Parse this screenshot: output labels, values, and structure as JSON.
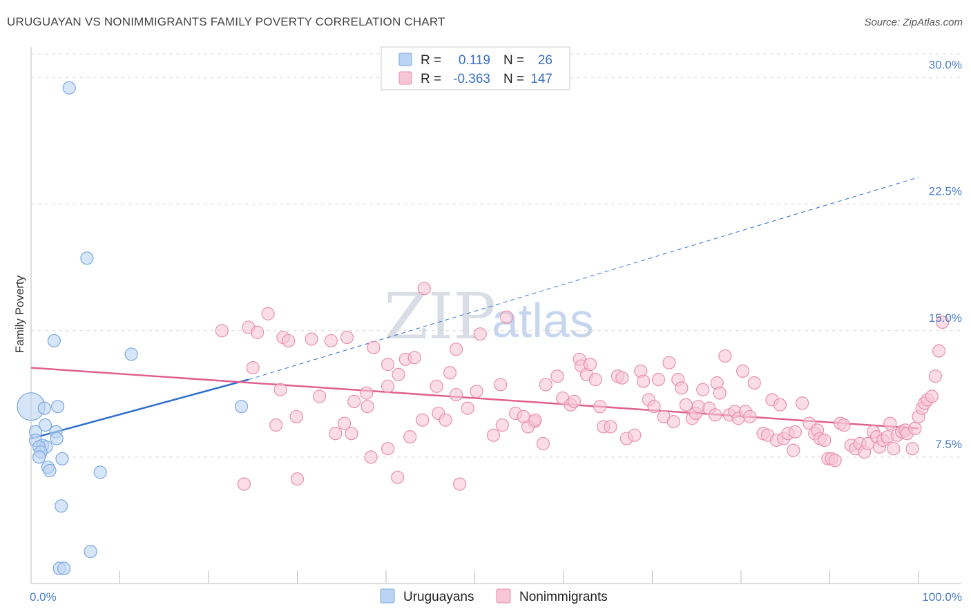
{
  "title": "URUGUAYAN VS NONIMMIGRANTS FAMILY POVERTY CORRELATION CHART",
  "source": "Source: ZipAtlas.com",
  "watermark": {
    "zip": "ZIP",
    "atlas": "atlas"
  },
  "colors": {
    "blue": "#7aa7e0",
    "blue_fill": "#bcd4f3",
    "blue_line": "#2f6fd0",
    "pink": "#e98fae",
    "pink_fill": "#f7c6d6",
    "pink_line": "#e0608f",
    "grid": "#d8d8d8",
    "tick_label": "#4a7cc4"
  },
  "stats_legend": {
    "rows": [
      {
        "r_label": "R =",
        "r_value": "0.119",
        "n_label": "N =",
        "n_value": "26",
        "series": "uruguayans"
      },
      {
        "r_label": "R =",
        "r_value": "-0.363",
        "n_label": "N =",
        "n_value": "147",
        "series": "nonimmigrants"
      }
    ]
  },
  "bottom_legend": [
    "Uruguayans",
    "Nonimmigrants"
  ],
  "chart_data": {
    "type": "scatter",
    "title": "URUGUAYAN VS NONIMMIGRANTS FAMILY POVERTY CORRELATION CHART",
    "xlabel": "",
    "ylabel": "Family Poverty",
    "xlim": [
      0,
      100
    ],
    "ylim": [
      0,
      31.5
    ],
    "x_tick_labels": [
      "0.0%",
      "100.0%"
    ],
    "y_ticks": [
      7.5,
      15.0,
      22.5,
      30.0
    ],
    "y_tick_labels": [
      "7.5%",
      "15.0%",
      "22.5%",
      "30.0%"
    ],
    "grid": "horizontal dashed",
    "legend": "top-center",
    "series": [
      {
        "name": "Uruguayans",
        "points": [
          [
            0.0,
            10.5
          ],
          [
            1.5,
            10.4
          ],
          [
            3.0,
            10.5
          ],
          [
            1.6,
            9.4
          ],
          [
            0.5,
            9.0
          ],
          [
            0.5,
            8.5
          ],
          [
            2.8,
            9.0
          ],
          [
            2.9,
            8.6
          ],
          [
            1.3,
            8.2
          ],
          [
            1.7,
            8.1
          ],
          [
            0.9,
            8.1
          ],
          [
            1.1,
            7.8
          ],
          [
            3.5,
            7.4
          ],
          [
            0.9,
            7.5
          ],
          [
            1.9,
            6.9
          ],
          [
            2.1,
            6.7
          ],
          [
            7.8,
            6.6
          ],
          [
            2.6,
            14.4
          ],
          [
            11.3,
            13.6
          ],
          [
            6.3,
            19.3
          ],
          [
            4.3,
            29.4
          ],
          [
            3.4,
            4.6
          ],
          [
            6.7,
            1.9
          ],
          [
            3.2,
            0.9
          ],
          [
            3.7,
            0.9
          ],
          [
            23.7,
            10.5
          ]
        ],
        "trend": {
          "x": [
            0,
            24.5
          ],
          "y": [
            8.6,
            12.1
          ],
          "extended_to": [
            100,
            24.1
          ]
        }
      },
      {
        "name": "Nonimmigrants",
        "points": [
          [
            21.5,
            15.0
          ],
          [
            24.5,
            15.2
          ],
          [
            25.5,
            14.9
          ],
          [
            26.7,
            16.0
          ],
          [
            28.4,
            14.6
          ],
          [
            29.0,
            14.4
          ],
          [
            31.6,
            14.5
          ],
          [
            33.8,
            14.4
          ],
          [
            35.6,
            14.6
          ],
          [
            36.4,
            10.8
          ],
          [
            37.8,
            11.3
          ],
          [
            37.9,
            10.5
          ],
          [
            38.6,
            14.0
          ],
          [
            40.2,
            11.7
          ],
          [
            40.2,
            13.0
          ],
          [
            41.4,
            12.4
          ],
          [
            42.2,
            13.3
          ],
          [
            43.2,
            13.4
          ],
          [
            44.3,
            17.5
          ],
          [
            47.9,
            13.9
          ],
          [
            47.9,
            11.2
          ],
          [
            45.7,
            11.7
          ],
          [
            41.3,
            6.3
          ],
          [
            40.2,
            8.0
          ],
          [
            38.3,
            7.5
          ],
          [
            36.1,
            8.9
          ],
          [
            35.3,
            9.5
          ],
          [
            34.3,
            8.9
          ],
          [
            29.9,
            9.9
          ],
          [
            27.6,
            9.4
          ],
          [
            28.1,
            11.5
          ],
          [
            25.0,
            12.8
          ],
          [
            30.0,
            6.2
          ],
          [
            24.0,
            5.9
          ],
          [
            32.5,
            11.1
          ],
          [
            42.7,
            8.7
          ],
          [
            44.1,
            9.7
          ],
          [
            45.9,
            10.1
          ],
          [
            47.2,
            12.5
          ],
          [
            49.2,
            10.4
          ],
          [
            50.2,
            11.4
          ],
          [
            50.6,
            14.8
          ],
          [
            52.9,
            11.8
          ],
          [
            53.1,
            9.4
          ],
          [
            53.6,
            15.8
          ],
          [
            52.1,
            8.8
          ],
          [
            48.3,
            5.9
          ],
          [
            46.7,
            9.7
          ],
          [
            54.6,
            10.1
          ],
          [
            56.7,
            9.6
          ],
          [
            58.0,
            11.8
          ],
          [
            59.3,
            12.3
          ],
          [
            59.9,
            11.0
          ],
          [
            60.8,
            10.6
          ],
          [
            61.2,
            10.8
          ],
          [
            61.8,
            13.3
          ],
          [
            62.0,
            12.9
          ],
          [
            62.6,
            12.4
          ],
          [
            63.0,
            13.0
          ],
          [
            63.6,
            12.1
          ],
          [
            57.7,
            8.3
          ],
          [
            56.0,
            9.3
          ],
          [
            56.8,
            9.7
          ],
          [
            55.5,
            9.9
          ],
          [
            64.1,
            10.5
          ],
          [
            64.5,
            9.3
          ],
          [
            65.3,
            9.3
          ],
          [
            66.1,
            12.3
          ],
          [
            66.6,
            12.2
          ],
          [
            67.1,
            8.6
          ],
          [
            68.0,
            8.8
          ],
          [
            68.7,
            12.6
          ],
          [
            69.0,
            12.0
          ],
          [
            69.6,
            10.9
          ],
          [
            70.2,
            10.5
          ],
          [
            70.7,
            12.1
          ],
          [
            71.3,
            9.9
          ],
          [
            71.9,
            13.1
          ],
          [
            72.4,
            9.6
          ],
          [
            72.9,
            12.1
          ],
          [
            73.3,
            11.6
          ],
          [
            73.8,
            10.6
          ],
          [
            74.5,
            9.8
          ],
          [
            74.9,
            10.1
          ],
          [
            75.2,
            10.5
          ],
          [
            75.7,
            11.5
          ],
          [
            76.4,
            10.4
          ],
          [
            77.1,
            10.0
          ],
          [
            77.3,
            11.9
          ],
          [
            77.6,
            11.3
          ],
          [
            78.2,
            13.5
          ],
          [
            78.7,
            10.0
          ],
          [
            79.3,
            10.2
          ],
          [
            79.7,
            9.8
          ],
          [
            80.5,
            10.2
          ],
          [
            81.0,
            9.9
          ],
          [
            80.2,
            12.6
          ],
          [
            81.5,
            11.9
          ],
          [
            82.5,
            8.9
          ],
          [
            83.0,
            8.8
          ],
          [
            83.5,
            10.9
          ],
          [
            84.0,
            8.5
          ],
          [
            84.4,
            10.6
          ],
          [
            84.8,
            8.6
          ],
          [
            85.3,
            8.9
          ],
          [
            85.9,
            7.9
          ],
          [
            86.1,
            9.0
          ],
          [
            86.9,
            10.7
          ],
          [
            87.7,
            9.5
          ],
          [
            88.3,
            8.9
          ],
          [
            88.6,
            9.1
          ],
          [
            88.9,
            8.6
          ],
          [
            89.4,
            8.5
          ],
          [
            89.8,
            7.4
          ],
          [
            90.2,
            7.4
          ],
          [
            90.6,
            7.3
          ],
          [
            91.2,
            9.5
          ],
          [
            91.6,
            9.4
          ],
          [
            92.4,
            8.2
          ],
          [
            92.9,
            8.0
          ],
          [
            93.4,
            8.3
          ],
          [
            93.9,
            7.8
          ],
          [
            94.3,
            8.3
          ],
          [
            94.9,
            9.0
          ],
          [
            95.3,
            8.7
          ],
          [
            95.6,
            8.1
          ],
          [
            96.0,
            8.5
          ],
          [
            96.5,
            8.7
          ],
          [
            96.8,
            9.5
          ],
          [
            97.2,
            8.0
          ],
          [
            97.6,
            8.8
          ],
          [
            98.1,
            9.0
          ],
          [
            98.5,
            9.1
          ],
          [
            98.7,
            8.9
          ],
          [
            99.3,
            8.0
          ],
          [
            99.6,
            9.2
          ],
          [
            100.0,
            9.9
          ],
          [
            100.4,
            10.4
          ],
          [
            100.7,
            10.7
          ],
          [
            101.0,
            10.9
          ],
          [
            101.5,
            11.1
          ],
          [
            101.9,
            12.3
          ],
          [
            102.3,
            13.8
          ],
          [
            102.7,
            15.5
          ]
        ],
        "trend": {
          "x": [
            0,
            100
          ],
          "y": [
            12.8,
            9.2
          ]
        }
      }
    ]
  }
}
